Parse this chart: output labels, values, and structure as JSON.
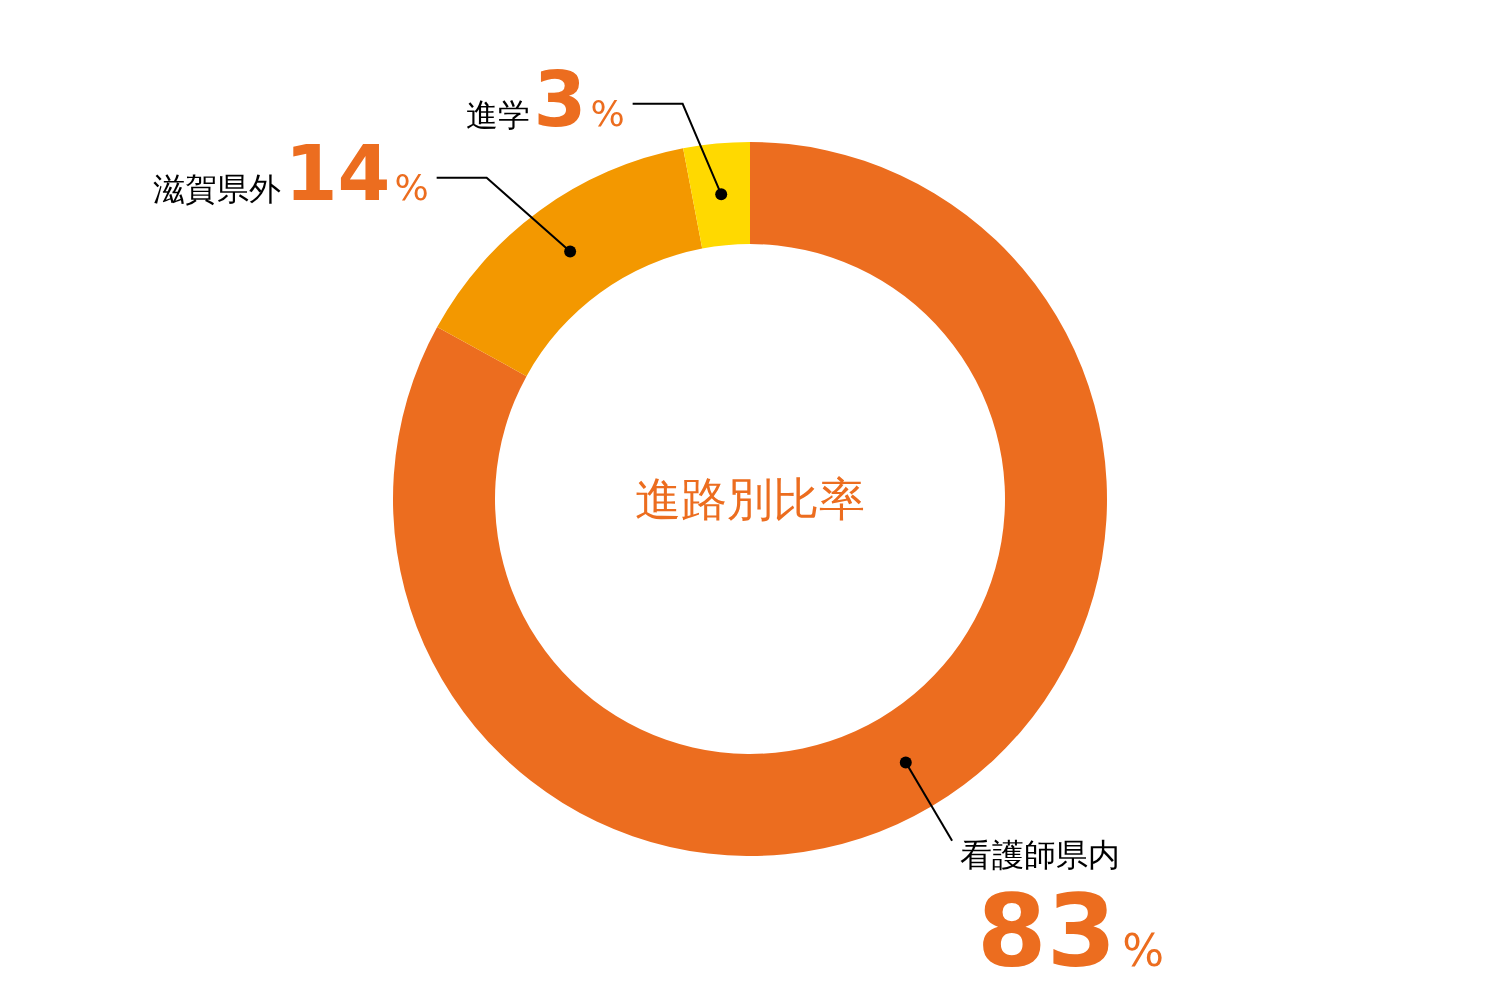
{
  "chart_data": {
    "type": "donut",
    "title": "進路別比率",
    "categories": [
      "看護師県内",
      "滋賀県外",
      "進学"
    ],
    "values": [
      83,
      14,
      3
    ],
    "colors": [
      "#ec6d1f",
      "#f39800",
      "#ffd900"
    ],
    "value_labels": [
      "83%",
      "14%",
      "3%"
    ]
  }
}
